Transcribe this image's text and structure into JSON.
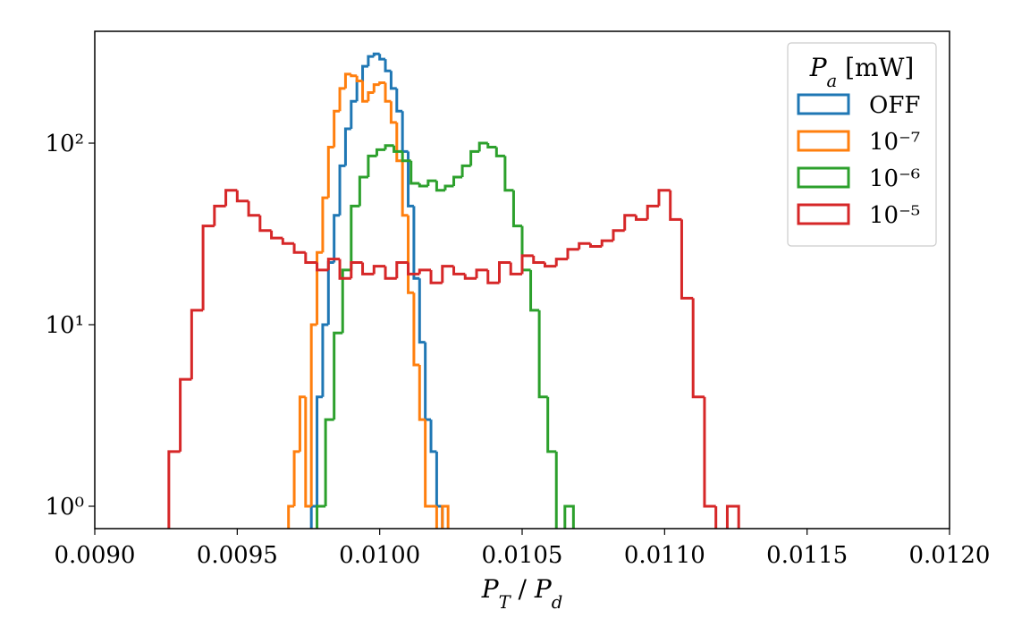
{
  "chart_data": {
    "type": "histogram",
    "x_label": "P_T / P_d",
    "legend_title": "P_a [mW]",
    "legend_position": "upper right",
    "log_y": true,
    "xlim": [
      0.009,
      0.012
    ],
    "ylim": [
      0.753,
      413
    ],
    "xticks": [
      {
        "value": 0.009,
        "label": "0.0090"
      },
      {
        "value": 0.0095,
        "label": "0.0095"
      },
      {
        "value": 0.01,
        "label": "0.0100"
      },
      {
        "value": 0.0105,
        "label": "0.0105"
      },
      {
        "value": 0.011,
        "label": "0.0110"
      },
      {
        "value": 0.0115,
        "label": "0.0115"
      },
      {
        "value": 0.012,
        "label": "0.0120"
      }
    ],
    "yticks": [
      {
        "value": 1,
        "label": "10⁰"
      },
      {
        "value": 10,
        "label": "10¹"
      },
      {
        "value": 100,
        "label": "10²"
      }
    ],
    "series": [
      {
        "name": "OFF",
        "color": "#1f77b4",
        "bins": [
          0.00976,
          0.00978,
          0.0098,
          0.00982,
          0.00984,
          0.00986,
          0.00988,
          0.0099,
          0.00992,
          0.00994,
          0.00996,
          0.00998,
          0.01,
          0.01002,
          0.01004,
          0.01006,
          0.01008,
          0.0101,
          0.01012,
          0.01014,
          0.01016,
          0.01018,
          0.0102,
          0.01022,
          0.01024
        ],
        "values": [
          1,
          4,
          10,
          22,
          40,
          75,
          120,
          170,
          220,
          265,
          300,
          310,
          290,
          250,
          200,
          150,
          90,
          45,
          18,
          8,
          3,
          2,
          1,
          0
        ]
      },
      {
        "name": "10⁻⁷",
        "color": "#ff7f0e",
        "bins": [
          0.00968,
          0.0097,
          0.00972,
          0.00974,
          0.00976,
          0.00978,
          0.0098,
          0.00982,
          0.00984,
          0.00986,
          0.00988,
          0.0099,
          0.00992,
          0.00994,
          0.00996,
          0.00998,
          0.01,
          0.01002,
          0.01004,
          0.01006,
          0.01008,
          0.0101,
          0.01012,
          0.01014,
          0.01016,
          0.01018,
          0.0102,
          0.01022,
          0.01024
        ],
        "values": [
          1,
          2,
          4,
          1,
          10,
          25,
          50,
          95,
          150,
          200,
          240,
          235,
          220,
          170,
          190,
          210,
          215,
          170,
          130,
          80,
          40,
          15,
          6,
          3,
          1,
          1,
          0,
          1
        ]
      },
      {
        "name": "10⁻⁶",
        "color": "#2ca02c",
        "bins": [
          0.00978,
          0.00981,
          0.00984,
          0.00987,
          0.0099,
          0.00993,
          0.00996,
          0.00999,
          0.01002,
          0.01005,
          0.01008,
          0.01011,
          0.01014,
          0.01017,
          0.0102,
          0.01023,
          0.01026,
          0.01029,
          0.01032,
          0.01035,
          0.01038,
          0.01041,
          0.01044,
          0.01047,
          0.0105,
          0.01053,
          0.01056,
          0.01059,
          0.01062,
          0.01065,
          0.01068
        ],
        "values": [
          1,
          3,
          9,
          20,
          45,
          65,
          85,
          92,
          97,
          90,
          80,
          60,
          58,
          62,
          55,
          58,
          65,
          75,
          90,
          100,
          95,
          85,
          55,
          35,
          20,
          12,
          4,
          2,
          0,
          1
        ]
      },
      {
        "name": "10⁻⁵",
        "color": "#d62728",
        "bins": [
          0.00926,
          0.0093,
          0.00934,
          0.00938,
          0.00942,
          0.00946,
          0.0095,
          0.00954,
          0.00958,
          0.00962,
          0.00966,
          0.0097,
          0.00974,
          0.00978,
          0.00982,
          0.00986,
          0.0099,
          0.00994,
          0.00998,
          0.01002,
          0.01006,
          0.0101,
          0.01014,
          0.01018,
          0.01022,
          0.01026,
          0.0103,
          0.01034,
          0.01038,
          0.01042,
          0.01046,
          0.0105,
          0.01054,
          0.01058,
          0.01062,
          0.01066,
          0.0107,
          0.01074,
          0.01078,
          0.01082,
          0.01086,
          0.0109,
          0.01094,
          0.01098,
          0.01102,
          0.01106,
          0.0111,
          0.01114,
          0.01118,
          0.01122,
          0.01126
        ],
        "values": [
          2,
          5,
          12,
          35,
          45,
          55,
          48,
          40,
          33,
          30,
          28,
          25,
          22,
          20,
          23,
          18,
          22,
          19,
          21,
          18,
          22,
          19,
          20,
          17,
          21,
          19,
          18,
          20,
          17,
          22,
          19,
          24,
          22,
          21,
          23,
          26,
          28,
          27,
          29,
          33,
          40,
          38,
          45,
          55,
          38,
          14,
          4,
          1,
          0,
          1
        ]
      }
    ]
  }
}
